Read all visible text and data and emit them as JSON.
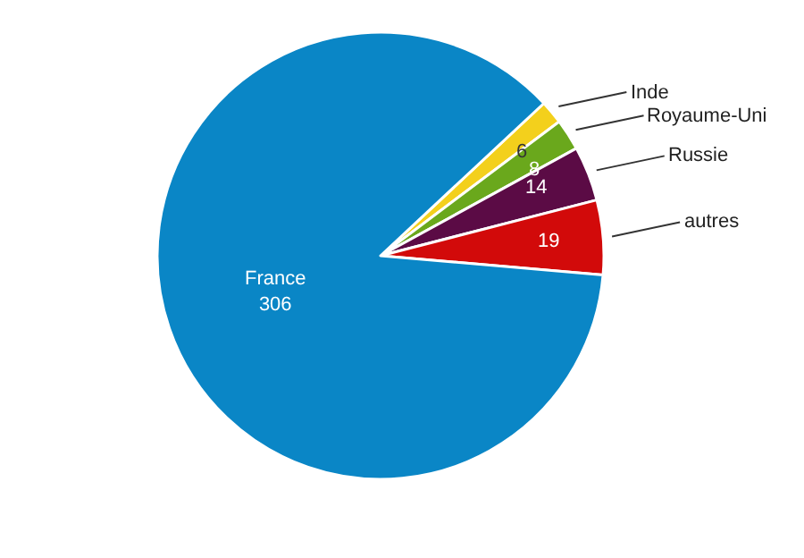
{
  "chart_data": {
    "type": "pie",
    "categories": [
      "Inde",
      "Royaume-Uni",
      "Russie",
      "autres",
      "France"
    ],
    "values": [
      6,
      8,
      14,
      19,
      306
    ],
    "colors": [
      "#f3d01c",
      "#6aa81c",
      "#5b0b45",
      "#d20a0a",
      "#0a86c6"
    ],
    "data_labels": true,
    "legend": false
  }
}
